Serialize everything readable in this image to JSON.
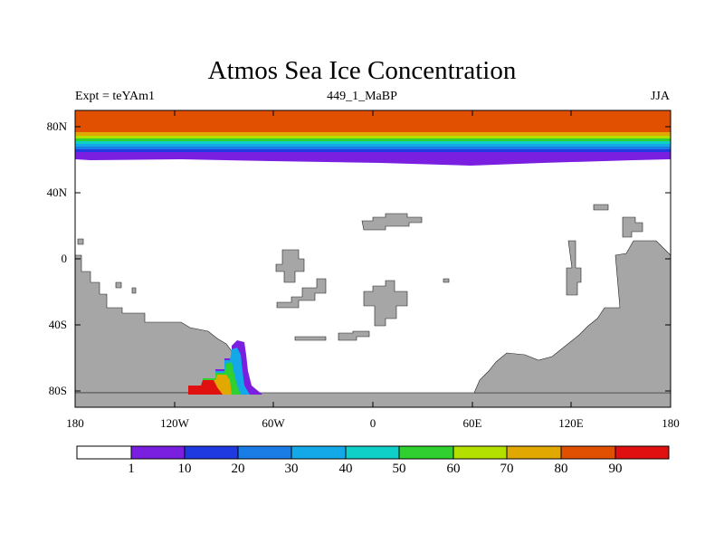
{
  "plot": {
    "title": "Atmos Sea Ice Concentration",
    "experiment": "Expt = teYAm1",
    "run_id": "449_1_MaBP",
    "season": "JJA"
  },
  "axes": {
    "lat_ticks": [
      "80N",
      "40N",
      "0",
      "40S",
      "80S"
    ],
    "lon_ticks": [
      "180",
      "120W",
      "60W",
      "0",
      "60E",
      "120E",
      "180"
    ]
  },
  "colorbar": {
    "labels": [
      "1",
      "10",
      "20",
      "30",
      "40",
      "50",
      "60",
      "70",
      "80",
      "90"
    ],
    "colors": [
      "#ffffff",
      "#7a1fe0",
      "#1f3ae0",
      "#1a7de6",
      "#13a9e8",
      "#0fd0c8",
      "#2fd02f",
      "#b4e000",
      "#e0a800",
      "#e05000",
      "#e01010"
    ]
  },
  "colors": {
    "land": "#a6a6a6",
    "ocean": "#ffffff"
  }
}
